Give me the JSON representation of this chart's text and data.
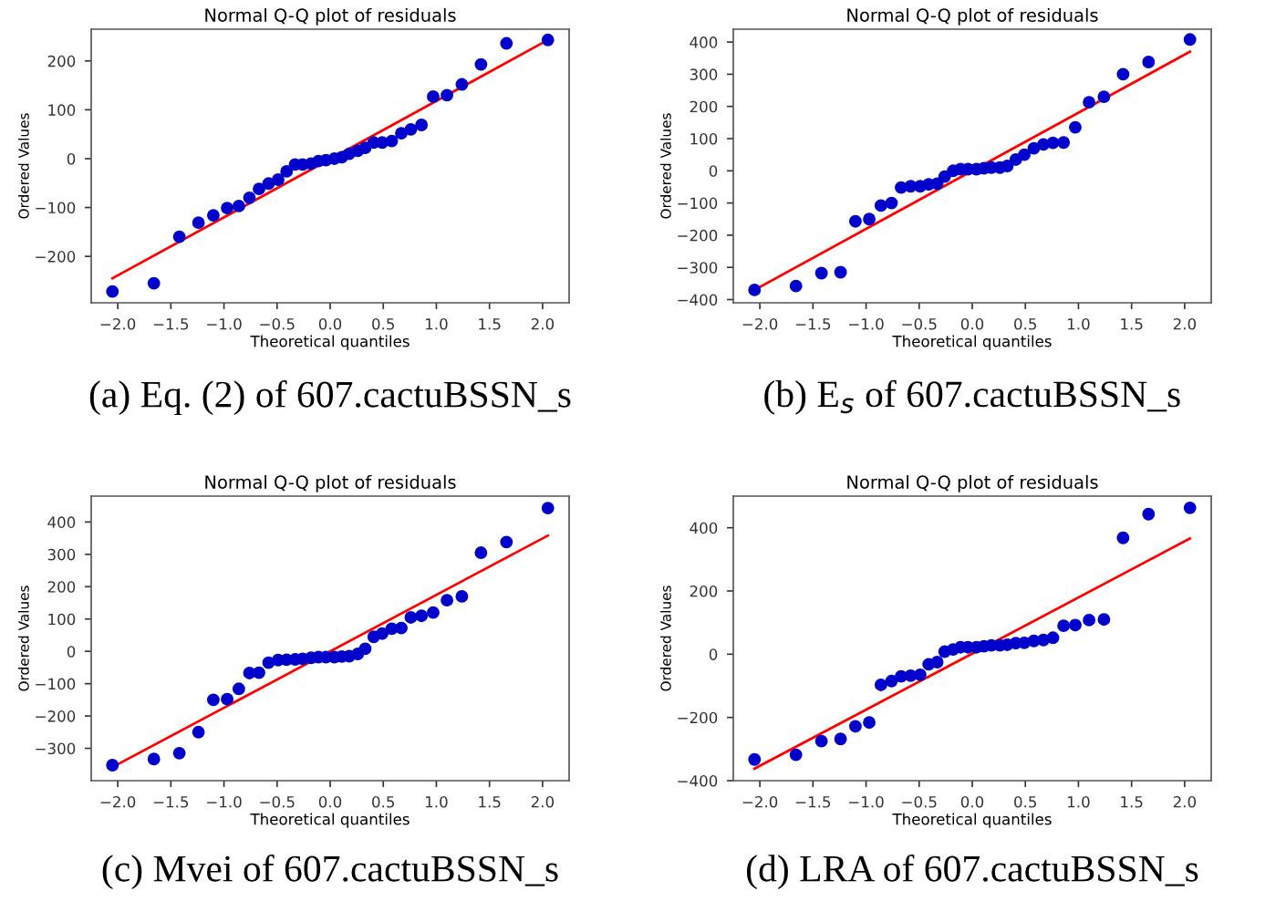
{
  "chart_data": [
    {
      "type": "scatter",
      "title": "Normal Q-Q plot of residuals",
      "xlabel": "Theoretical quantiles",
      "ylabel": "Ordered Values",
      "marker": "circle",
      "xlim": [
        -2.25,
        2.25
      ],
      "ylim": [
        -295,
        265
      ],
      "xticks": [
        {
          "value": -2,
          "label": "−2.0"
        },
        {
          "value": -1.5,
          "label": "−1.5"
        },
        {
          "value": -1,
          "label": "−1.0"
        },
        {
          "value": -0.5,
          "label": "−0.5"
        },
        {
          "value": 0,
          "label": "0.0"
        },
        {
          "value": 0.5,
          "label": "0.5"
        },
        {
          "value": 1,
          "label": "1.0"
        },
        {
          "value": 1.5,
          "label": "1.5"
        },
        {
          "value": 2,
          "label": "2.0"
        }
      ],
      "yticks": [
        {
          "value": -200,
          "label": "−200"
        },
        {
          "value": -100,
          "label": "−100"
        },
        0,
        100,
        200
      ],
      "series": [
        {
          "color": "#0000cc",
          "x": [
            -2.05,
            -1.66,
            -1.42,
            -1.24,
            -1.1,
            -0.97,
            -0.86,
            -0.76,
            -0.67,
            -0.58,
            -0.49,
            -0.41,
            -0.33,
            -0.26,
            -0.18,
            -0.11,
            -0.04,
            0.04,
            0.11,
            0.18,
            0.26,
            0.33,
            0.41,
            0.49,
            0.58,
            0.67,
            0.76,
            0.86,
            0.97,
            1.1,
            1.24,
            1.42,
            1.66,
            2.05
          ],
          "values": [
            -272,
            -255,
            -160,
            -131,
            -116,
            -101,
            -97,
            -80,
            -62,
            -51,
            -43,
            -26,
            -12,
            -12,
            -10,
            -5,
            -3,
            0,
            3,
            10,
            16,
            22,
            33,
            33,
            36,
            52,
            60,
            69,
            127,
            130,
            152,
            193,
            236,
            243
          ]
        },
        {
          "type": "line",
          "marker": "none",
          "color": "#ff0000",
          "x": [
            -2.05,
            2.05
          ],
          "values": [
            -245,
            243
          ]
        }
      ],
      "annotations": [
        "(a) Eq. (2) of 607.cactuBSSN_s"
      ]
    },
    {
      "type": "scatter",
      "title": "Normal Q-Q plot of residuals",
      "xlabel": "Theoretical quantiles",
      "ylabel": "Ordered Values",
      "marker": "circle",
      "xlim": [
        -2.25,
        2.25
      ],
      "ylim": [
        -410,
        440
      ],
      "xticks": [
        {
          "value": -2,
          "label": "−2.0"
        },
        {
          "value": -1.5,
          "label": "−1.5"
        },
        {
          "value": -1,
          "label": "−1.0"
        },
        {
          "value": -0.5,
          "label": "−0.5"
        },
        {
          "value": 0,
          "label": "0.0"
        },
        {
          "value": 0.5,
          "label": "0.5"
        },
        {
          "value": 1,
          "label": "1.0"
        },
        {
          "value": 1.5,
          "label": "1.5"
        },
        {
          "value": 2,
          "label": "2.0"
        }
      ],
      "yticks": [
        {
          "value": -400,
          "label": "−400"
        },
        {
          "value": -300,
          "label": "−300"
        },
        {
          "value": -200,
          "label": "−200"
        },
        {
          "value": -100,
          "label": "−100"
        },
        0,
        100,
        200,
        300,
        400
      ],
      "series": [
        {
          "color": "#0000cc",
          "x": [
            -2.05,
            -1.66,
            -1.42,
            -1.24,
            -1.1,
            -0.97,
            -0.86,
            -0.76,
            -0.67,
            -0.58,
            -0.49,
            -0.41,
            -0.33,
            -0.26,
            -0.18,
            -0.11,
            -0.04,
            0.04,
            0.11,
            0.18,
            0.26,
            0.33,
            0.41,
            0.49,
            0.58,
            0.67,
            0.76,
            0.86,
            0.97,
            1.1,
            1.24,
            1.42,
            1.66,
            2.05
          ],
          "values": [
            -370,
            -358,
            -318,
            -315,
            -157,
            -150,
            -108,
            -100,
            -52,
            -48,
            -48,
            -42,
            -40,
            -18,
            0,
            5,
            5,
            5,
            8,
            10,
            10,
            15,
            35,
            50,
            70,
            82,
            87,
            88,
            135,
            213,
            230,
            300,
            338,
            408
          ]
        },
        {
          "type": "line",
          "marker": "none",
          "color": "#ff0000",
          "x": [
            -2.05,
            2.05
          ],
          "values": [
            -370,
            370
          ]
        }
      ],
      "annotations": [
        "(b) E$_{s}$ of 607.cactuBSSN_s"
      ]
    },
    {
      "type": "scatter",
      "title": "Normal Q-Q plot of residuals",
      "xlabel": "Theoretical quantiles",
      "ylabel": "Ordered Values",
      "marker": "circle",
      "xlim": [
        -2.25,
        2.25
      ],
      "ylim": [
        -400,
        480
      ],
      "xticks": [
        {
          "value": -2,
          "label": "−2.0"
        },
        {
          "value": -1.5,
          "label": "−1.5"
        },
        {
          "value": -1,
          "label": "−1.0"
        },
        {
          "value": -0.5,
          "label": "−0.5"
        },
        {
          "value": 0,
          "label": "0.0"
        },
        {
          "value": 0.5,
          "label": "0.5"
        },
        {
          "value": 1,
          "label": "1.0"
        },
        {
          "value": 1.5,
          "label": "1.5"
        },
        {
          "value": 2,
          "label": "2.0"
        }
      ],
      "yticks": [
        {
          "value": -300,
          "label": "−300"
        },
        {
          "value": -200,
          "label": "−200"
        },
        {
          "value": -100,
          "label": "−100"
        },
        0,
        100,
        200,
        300,
        400
      ],
      "series": [
        {
          "color": "#0000cc",
          "x": [
            -2.05,
            -1.66,
            -1.42,
            -1.24,
            -1.1,
            -0.97,
            -0.86,
            -0.76,
            -0.67,
            -0.58,
            -0.49,
            -0.41,
            -0.33,
            -0.26,
            -0.18,
            -0.11,
            -0.04,
            0.04,
            0.11,
            0.18,
            0.26,
            0.33,
            0.41,
            0.49,
            0.58,
            0.67,
            0.76,
            0.86,
            0.97,
            1.1,
            1.24,
            1.42,
            1.66,
            2.05
          ],
          "values": [
            -352,
            -333,
            -315,
            -250,
            -150,
            -148,
            -116,
            -67,
            -66,
            -35,
            -27,
            -26,
            -25,
            -23,
            -20,
            -18,
            -18,
            -18,
            -16,
            -15,
            -8,
            8,
            45,
            55,
            70,
            72,
            105,
            110,
            120,
            158,
            170,
            305,
            338,
            443
          ]
        },
        {
          "type": "line",
          "marker": "none",
          "color": "#ff0000",
          "x": [
            -2.05,
            2.05
          ],
          "values": [
            -358,
            358
          ]
        }
      ],
      "annotations": [
        "(c) Mvei of 607.cactuBSSN_s"
      ]
    },
    {
      "type": "scatter",
      "title": "Normal Q-Q plot of residuals",
      "xlabel": "Theoretical quantiles",
      "ylabel": "Ordered Values",
      "marker": "circle",
      "xlim": [
        -2.25,
        2.25
      ],
      "ylim": [
        -400,
        500
      ],
      "xticks": [
        {
          "value": -2,
          "label": "−2.0"
        },
        {
          "value": -1.5,
          "label": "−1.5"
        },
        {
          "value": -1,
          "label": "−1.0"
        },
        {
          "value": -0.5,
          "label": "−0.5"
        },
        {
          "value": 0,
          "label": "0.0"
        },
        {
          "value": 0.5,
          "label": "0.5"
        },
        {
          "value": 1,
          "label": "1.0"
        },
        {
          "value": 1.5,
          "label": "1.5"
        },
        {
          "value": 2,
          "label": "2.0"
        }
      ],
      "yticks": [
        {
          "value": -400,
          "label": "−400"
        },
        {
          "value": -200,
          "label": "−200"
        },
        0,
        200,
        400
      ],
      "series": [
        {
          "color": "#0000cc",
          "x": [
            -2.05,
            -1.66,
            -1.42,
            -1.24,
            -1.1,
            -0.97,
            -0.86,
            -0.76,
            -0.67,
            -0.58,
            -0.49,
            -0.41,
            -0.33,
            -0.26,
            -0.18,
            -0.11,
            -0.04,
            0.04,
            0.11,
            0.18,
            0.26,
            0.33,
            0.41,
            0.49,
            0.58,
            0.67,
            0.76,
            0.86,
            0.97,
            1.1,
            1.24,
            1.42,
            1.66,
            2.05
          ],
          "values": [
            -333,
            -318,
            -275,
            -268,
            -228,
            -216,
            -97,
            -85,
            -70,
            -68,
            -65,
            -32,
            -25,
            8,
            15,
            22,
            22,
            22,
            25,
            28,
            28,
            30,
            35,
            36,
            42,
            45,
            52,
            90,
            92,
            108,
            110,
            368,
            443,
            463
          ]
        },
        {
          "type": "line",
          "marker": "none",
          "color": "#ff0000",
          "x": [
            -2.05,
            2.05
          ],
          "values": [
            -362,
            366
          ]
        }
      ],
      "annotations": [
        "(d) LRA of 607.cactuBSSN_s"
      ]
    }
  ]
}
